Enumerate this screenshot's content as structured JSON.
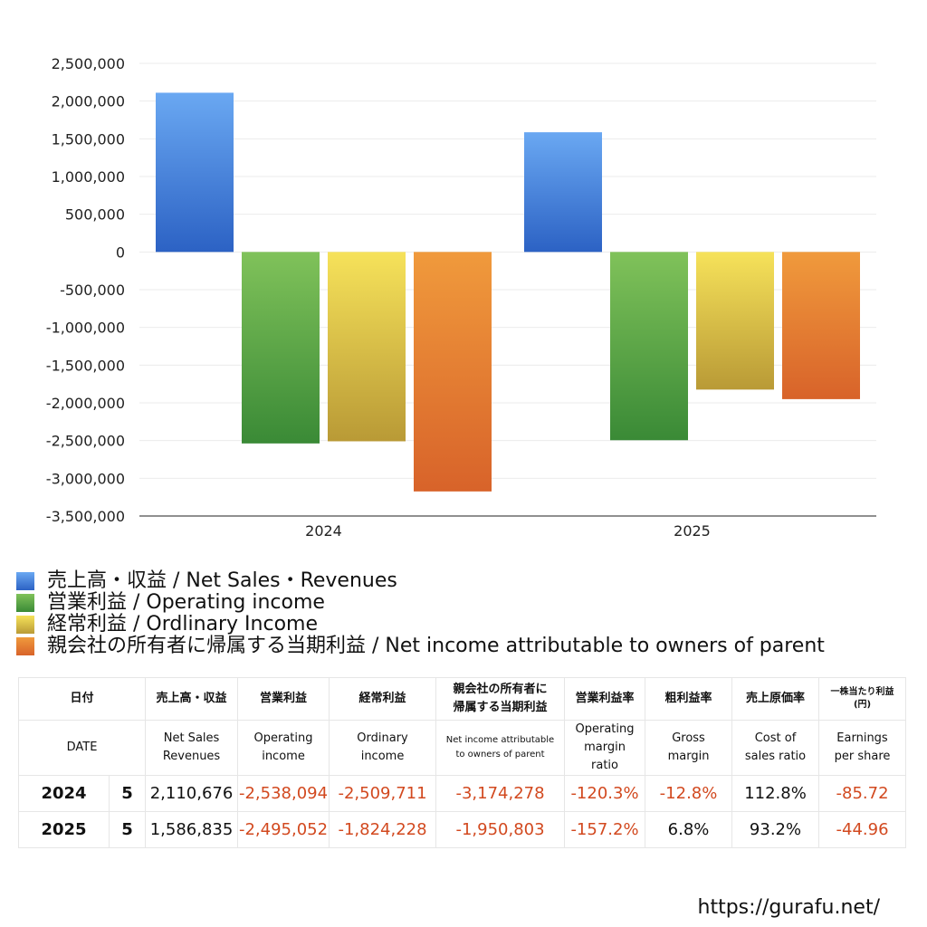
{
  "chart_data": {
    "type": "bar",
    "categories": [
      "2024",
      "2025"
    ],
    "series": [
      {
        "name": "売上高・収益 / Net Sales・Revenues",
        "values": [
          2110676,
          1586835
        ]
      },
      {
        "name": "営業利益 / Operating income",
        "values": [
          -2538094,
          -2495052
        ]
      },
      {
        "name": "経常利益 / Ordlinary Income",
        "values": [
          -2509711,
          -1824228
        ]
      },
      {
        "name": "親会社の所有者に帰属する当期利益 / Net income attributable to owners of parent",
        "values": [
          -3174278,
          -1950803
        ]
      }
    ],
    "ylim": [
      -3500000,
      2500000
    ],
    "yticks": [
      2500000,
      2000000,
      1500000,
      1000000,
      500000,
      0,
      -500000,
      -1000000,
      -1500000,
      -2000000,
      -2500000,
      -3000000,
      -3500000
    ],
    "grid": true,
    "colors": [
      {
        "top": "#6aa8f2",
        "bottom": "#2c62c4"
      },
      {
        "top": "#80c25a",
        "bottom": "#3a8a36"
      },
      {
        "top": "#f6e25a",
        "bottom": "#b99a36"
      },
      {
        "top": "#f09a3c",
        "bottom": "#d8632a"
      }
    ]
  },
  "table": {
    "headers_jp": [
      "日付",
      "売上高・収益",
      "営業利益",
      "経常利益",
      "親会社の所有者に",
      "帰属する当期利益",
      "営業利益率",
      "粗利益率",
      "売上原価率",
      "一株当たり利益",
      "(円)"
    ],
    "headers_en": [
      "DATE",
      "Net Sales",
      "Revenues",
      "Operating",
      "income",
      "Ordinary",
      "income",
      "Net income attributable",
      "to owners of parent",
      "Operating",
      "margin",
      "ratio",
      "Gross",
      "margin",
      "Cost of",
      "sales ratio",
      "Earnings",
      "per share"
    ],
    "rows": [
      {
        "year": "2024",
        "month": "5",
        "sales": "2,110,676",
        "op": "-2,538,094",
        "ord": "-2,509,711",
        "net": "-3,174,278",
        "opm": "-120.3%",
        "gm": "-12.8%",
        "cost": "112.8%",
        "eps": "-85.72"
      },
      {
        "year": "2025",
        "month": "5",
        "sales": "1,586,835",
        "op": "-2,495,052",
        "ord": "-1,824,228",
        "net": "-1,950,803",
        "opm": "-157.2%",
        "gm": "6.8%",
        "cost": "93.2%",
        "eps": "-44.96"
      }
    ]
  },
  "footer": {
    "url": "https://gurafu.net/"
  }
}
